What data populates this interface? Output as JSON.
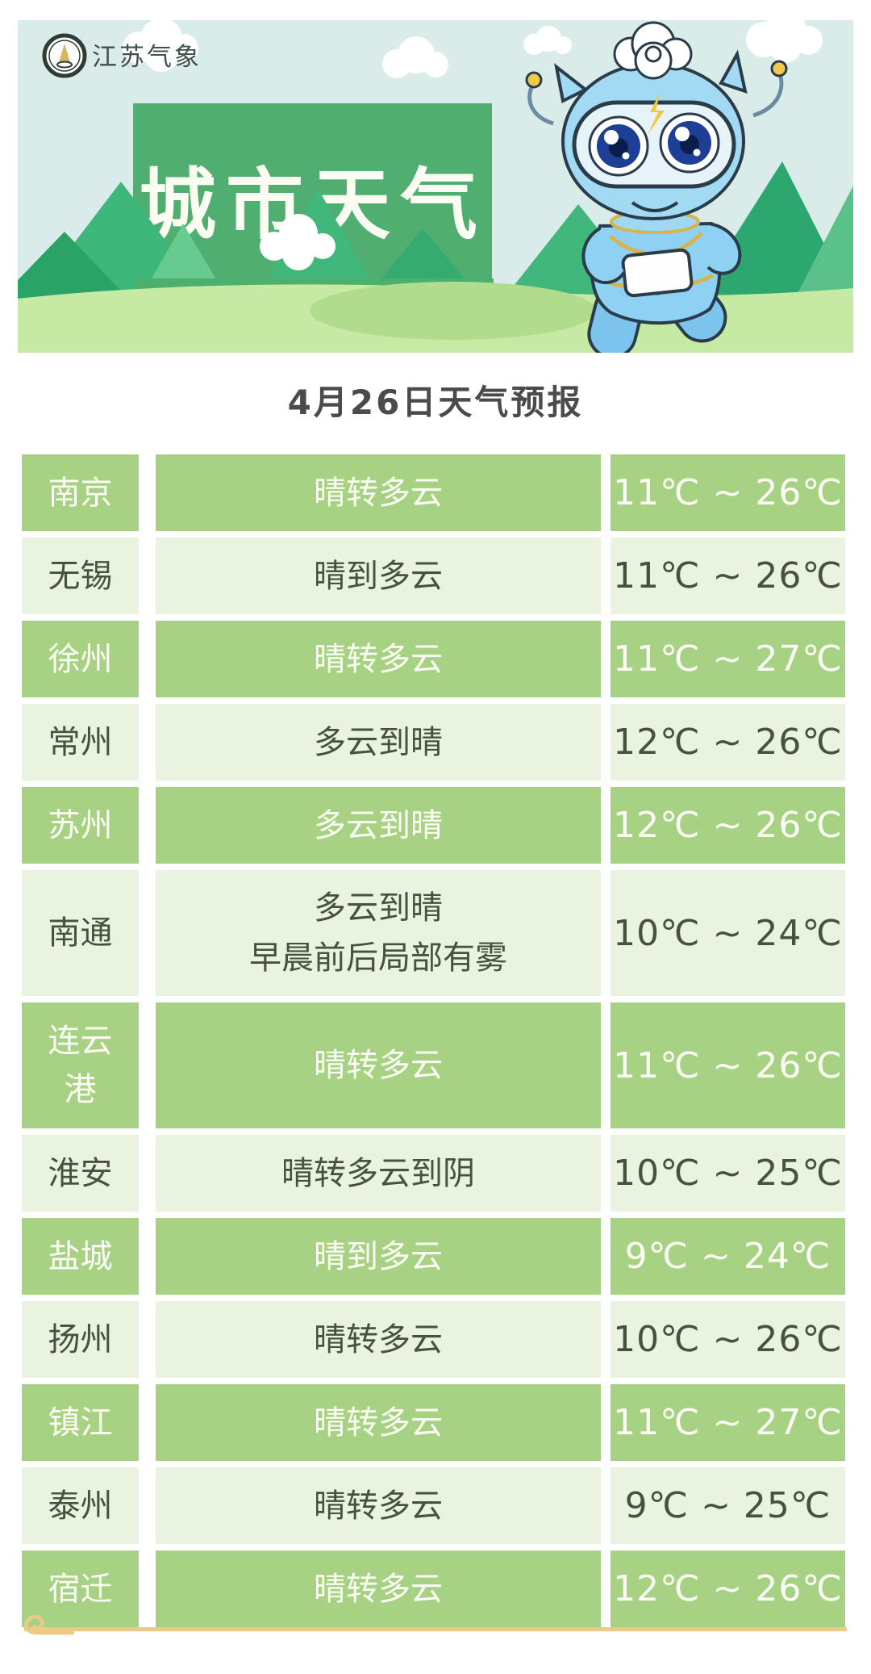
{
  "banner": {
    "logo_label": "江苏气象",
    "title": "城市天气"
  },
  "page_title": "4月26日天气预报",
  "table": {
    "rows": [
      {
        "city": "南京",
        "weather": "晴转多云",
        "temp": "11℃ ~ 26℃",
        "style": "green"
      },
      {
        "city": "无锡",
        "weather": "晴到多云",
        "temp": "11℃ ~ 26℃",
        "style": "light"
      },
      {
        "city": "徐州",
        "weather": "晴转多云",
        "temp": "11℃ ~ 27℃",
        "style": "green"
      },
      {
        "city": "常州",
        "weather": "多云到晴",
        "temp": "12℃ ~ 26℃",
        "style": "light"
      },
      {
        "city": "苏州",
        "weather": "多云到晴",
        "temp": "12℃ ~ 26℃",
        "style": "green"
      },
      {
        "city": "南通",
        "weather": "多云到晴",
        "weather_line2": "早晨前后局部有雾",
        "temp": "10℃ ~ 24℃",
        "style": "light",
        "tall": true
      },
      {
        "city": "连云港",
        "weather": "晴转多云",
        "temp": "11℃ ~ 26℃",
        "style": "green",
        "tall": true
      },
      {
        "city": "淮安",
        "weather": "晴转多云到阴",
        "temp": "10℃ ~ 25℃",
        "style": "light"
      },
      {
        "city": "盐城",
        "weather": "晴到多云",
        "temp": "9℃ ~ 24℃",
        "style": "green"
      },
      {
        "city": "扬州",
        "weather": "晴转多云",
        "temp": "10℃ ~ 26℃",
        "style": "light"
      },
      {
        "city": "镇江",
        "weather": "晴转多云",
        "temp": "11℃ ~ 27℃",
        "style": "green"
      },
      {
        "city": "泰州",
        "weather": "晴转多云",
        "temp": "9℃ ~ 25℃",
        "style": "light"
      },
      {
        "city": "宿迁",
        "weather": "晴转多云",
        "temp": "12℃ ~ 26℃",
        "style": "green"
      }
    ]
  },
  "colors": {
    "row_green": "#a7d183",
    "row_light": "#e9f3e0",
    "row_green_text": "#fcfef6",
    "row_light_text": "#46513f",
    "banner_sky": "#d9ecea",
    "banner_panel_green": "#4fae70",
    "grass_green": "#c6eaa4",
    "gold_frame": "#ecca85",
    "title_text": "#4b4b4b"
  }
}
